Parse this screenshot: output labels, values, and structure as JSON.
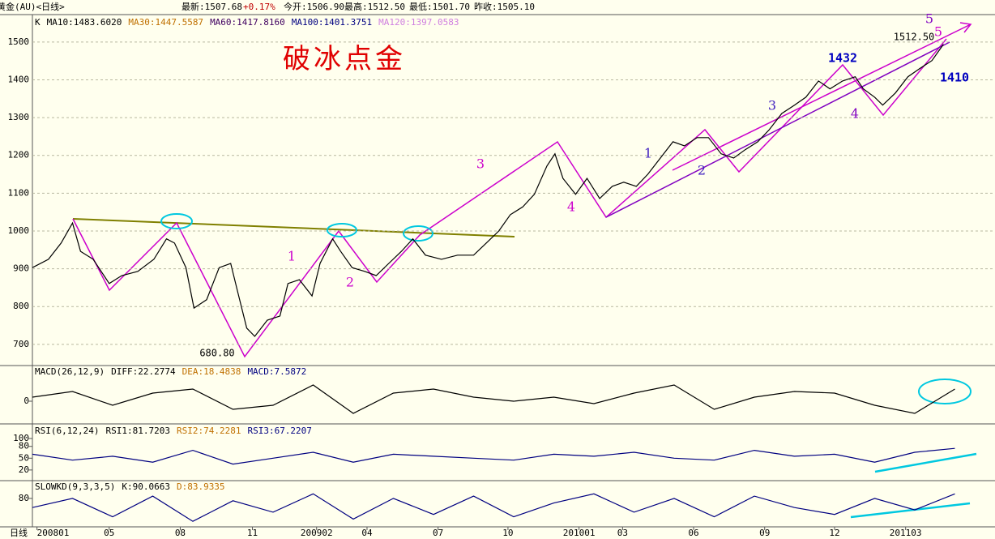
{
  "header": {
    "title": "黄金(AU)<日线>",
    "fields": [
      "最新:1507.68",
      "+0.17%",
      "今开:1506.90",
      "最高:1512.50",
      "最低:1501.70",
      "昨收:1505.10"
    ]
  },
  "chart_data": [
    {
      "type": "line",
      "grid": true,
      "legend_items": [
        {
          "label": "MA10:1483.6020",
          "color": "#000000"
        },
        {
          "label": "MA30:1447.5587",
          "color": "#c07000"
        },
        {
          "label": "MA60:1417.8160",
          "color": "#400060"
        },
        {
          "label": "MA100:1401.3751",
          "color": "#000080"
        },
        {
          "label": "MA120:1397.0583",
          "color": "#d080e0"
        }
      ],
      "x": [
        0,
        14,
        25,
        35,
        42,
        53,
        67,
        78,
        92,
        106,
        117,
        124,
        134,
        141,
        152,
        163,
        173,
        180,
        187,
        194,
        205,
        216,
        223,
        233,
        244,
        251,
        262,
        269,
        279,
        290,
        300,
        311,
        322,
        332,
        343,
        357,
        371,
        385,
        396,
        407,
        417,
        428,
        438,
        449,
        456,
        463,
        474,
        484,
        495,
        506,
        516,
        527,
        537,
        548,
        559,
        569,
        580,
        590,
        601,
        612,
        622,
        633,
        643,
        654,
        665,
        675,
        686,
        696,
        707,
        718,
        725,
        735,
        742,
        753,
        764,
        774,
        785,
        795
      ],
      "series": [
        {
          "name": "K",
          "color": "#000000",
          "values": [
            903,
            925,
            968,
            1021,
            946,
            925,
            861,
            882,
            893,
            925,
            979,
            968,
            903,
            796,
            818,
            903,
            914,
            828,
            743,
            721,
            764,
            775,
            861,
            871,
            828,
            914,
            979,
            946,
            903,
            893,
            882,
            914,
            946,
            979,
            936,
            925,
            936,
            936,
            968,
            1000,
            1043,
            1064,
            1097,
            1172,
            1204,
            1139,
            1097,
            1139,
            1086,
            1118,
            1129,
            1118,
            1150,
            1193,
            1236,
            1225,
            1247,
            1247,
            1204,
            1193,
            1215,
            1236,
            1268,
            1311,
            1333,
            1354,
            1397,
            1376,
            1397,
            1408,
            1376,
            1354,
            1333,
            1365,
            1408,
            1429,
            1451,
            1494
          ]
        }
      ],
      "xlim": [
        0,
        840
      ],
      "ylim": [
        646,
        1579
      ],
      "yticks": [
        700,
        800,
        900,
        1000,
        1100,
        1200,
        1300,
        1400,
        1500
      ],
      "x_axis_label": "日线",
      "xticks": [
        {
          "value": 4,
          "label": "200801"
        },
        {
          "value": 67,
          "label": "05"
        },
        {
          "value": 129,
          "label": "08"
        },
        {
          "value": 192,
          "label": "11"
        },
        {
          "value": 248,
          "label": "200902"
        },
        {
          "value": 292,
          "label": "04"
        },
        {
          "value": 354,
          "label": "07"
        },
        {
          "value": 415,
          "label": "10"
        },
        {
          "value": 477,
          "label": "201001"
        },
        {
          "value": 515,
          "label": "03"
        },
        {
          "value": 577,
          "label": "06"
        },
        {
          "value": 639,
          "label": "09"
        },
        {
          "value": 700,
          "label": "12"
        },
        {
          "value": 762,
          "label": "201103"
        }
      ],
      "annotations": [
        "破冰点金",
        "680.80",
        "1512.50",
        "1432",
        "1410",
        "1",
        "2",
        "3",
        "4",
        "1",
        "2",
        "3",
        "4",
        "5",
        "5"
      ]
    },
    {
      "type": "line",
      "title": "MACD(26,12,9)",
      "grid": false,
      "legend_items": [
        {
          "label": "DIFF:22.2774",
          "color": "#000000"
        },
        {
          "label": "DEA:18.4838",
          "color": "#c07000"
        },
        {
          "label": "MACD:7.5872",
          "color": "#000080"
        }
      ],
      "x": [
        0,
        35,
        70,
        105,
        140,
        175,
        210,
        245,
        280,
        315,
        350,
        385,
        420,
        455,
        490,
        525,
        560,
        595,
        630,
        665,
        700,
        735,
        770,
        805
      ],
      "series": [
        {
          "color": "#000000",
          "values": [
            5,
            12,
            -5,
            10,
            15,
            -10,
            -5,
            20,
            -15,
            10,
            15,
            5,
            0,
            5,
            -3,
            10,
            20,
            -10,
            5,
            12,
            10,
            -5,
            -15,
            15
          ]
        }
      ],
      "xlim": [
        0,
        840
      ],
      "ylim": [
        -27,
        43
      ],
      "yticks": [
        0
      ]
    },
    {
      "type": "line",
      "title": "RSI(6,12,24)",
      "grid": false,
      "legend_items": [
        {
          "label": "RSI1:81.7203",
          "color": "#000000"
        },
        {
          "label": "RSI2:74.2281",
          "color": "#c07000"
        },
        {
          "label": "RSI3:67.2207",
          "color": "#000080"
        }
      ],
      "x": [
        0,
        35,
        70,
        105,
        140,
        175,
        210,
        245,
        280,
        315,
        350,
        385,
        420,
        455,
        490,
        525,
        560,
        595,
        630,
        665,
        700,
        735,
        770,
        805
      ],
      "series": [
        {
          "color": "#000080",
          "values": [
            60,
            45,
            55,
            40,
            70,
            35,
            50,
            65,
            40,
            60,
            55,
            50,
            45,
            60,
            55,
            65,
            50,
            45,
            70,
            55,
            60,
            40,
            65,
            75
          ]
        }
      ],
      "xlim": [
        0,
        840
      ],
      "ylim": [
        -5,
        133
      ],
      "yticks": [
        20,
        50,
        80,
        100
      ]
    },
    {
      "type": "line",
      "title": "SLOWKD(9,3,3,5)",
      "grid": false,
      "legend_items": [
        {
          "label": "K:90.0663",
          "color": "#000000"
        },
        {
          "label": "D:83.9335",
          "color": "#c07000"
        }
      ],
      "x": [
        0,
        35,
        70,
        105,
        140,
        175,
        210,
        245,
        280,
        315,
        350,
        385,
        420,
        455,
        490,
        525,
        560,
        595,
        630,
        665,
        700,
        735,
        770,
        805
      ],
      "series": [
        {
          "color": "#000080",
          "values": [
            60,
            80,
            40,
            85,
            30,
            75,
            50,
            90,
            35,
            80,
            45,
            85,
            40,
            70,
            90,
            50,
            80,
            40,
            85,
            60,
            45,
            80,
            55,
            90
          ]
        }
      ],
      "xlim": [
        0,
        840
      ],
      "ylim": [
        18,
        117
      ],
      "yticks": [
        80
      ]
    }
  ]
}
